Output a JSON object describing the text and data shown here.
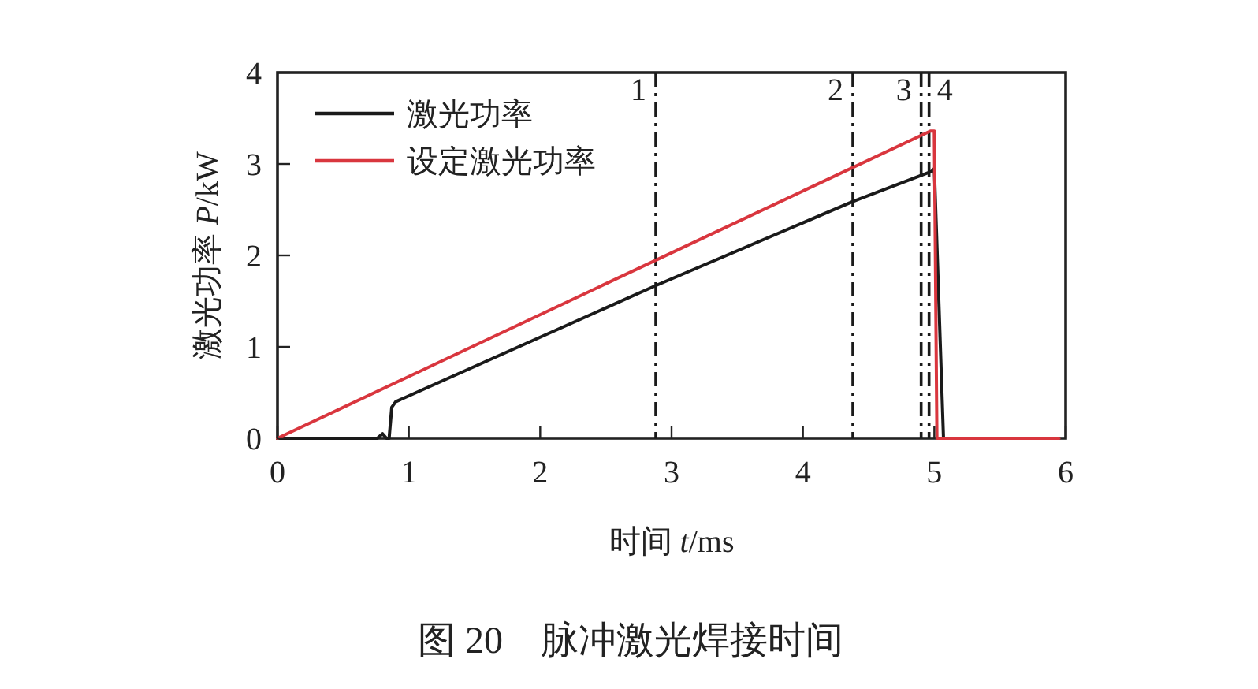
{
  "chart_data": {
    "type": "line",
    "title": "图 20　脉冲激光焊接时间",
    "xlabel": "时间 *t*/ms",
    "ylabel": "激光功率 *P*/kW",
    "xlim": [
      0,
      6
    ],
    "xticks": [
      0,
      1,
      2,
      3,
      4,
      5,
      6
    ],
    "ylim": [
      0,
      4
    ],
    "yticks": [
      0,
      1,
      2,
      3,
      4
    ],
    "legend": "top left",
    "grid": false,
    "series": [
      {
        "name": "激光功率",
        "color": "#1a1a1a",
        "x": [
          0,
          0.76,
          0.8,
          0.83,
          0.85,
          0.87,
          0.9,
          2.88,
          4.38,
          4.98,
          5.0,
          5.07,
          5.2
        ],
        "values": [
          0,
          0,
          0.05,
          0,
          0,
          0.34,
          0.4,
          1.67,
          2.59,
          2.92,
          2.95,
          0,
          0
        ]
      },
      {
        "name": "设定激光功率",
        "color": "#d9363e",
        "x": [
          0,
          4.97,
          5.0,
          5.02,
          5.95
        ],
        "values": [
          0,
          3.36,
          3.36,
          0,
          0
        ]
      }
    ],
    "ref_lines": [
      {
        "axis": "x",
        "value": 2.88,
        "color": "#1a1a1a"
      },
      {
        "axis": "x",
        "value": 4.38,
        "color": "#1a1a1a"
      },
      {
        "axis": "x",
        "value": 4.9,
        "color": "#1a1a1a"
      },
      {
        "axis": "x",
        "value": 4.96,
        "color": "#1a1a1a"
      }
    ],
    "annotations": [
      {
        "text": "1",
        "x": 2.88,
        "y": 3.7
      },
      {
        "text": "2",
        "x": 4.38,
        "y": 3.7
      },
      {
        "text": "3",
        "x": 4.9,
        "y": 3.7
      },
      {
        "text": "4",
        "x": 4.96,
        "y": 3.7
      }
    ]
  }
}
